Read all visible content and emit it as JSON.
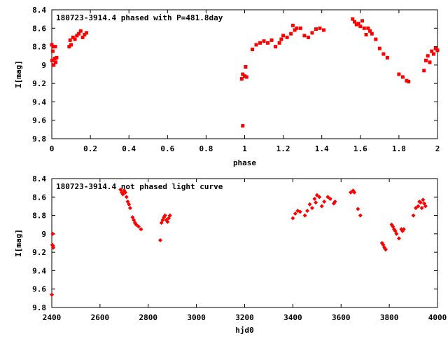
{
  "chart_data": [
    {
      "type": "scatter",
      "title": "180723-3914.4 phased with P=481.8day",
      "xlabel": "phase",
      "ylabel": "I[mag]",
      "xlim": [
        0,
        2
      ],
      "ylim": [
        8.4,
        9.8
      ],
      "y_inverted": true,
      "grid": false,
      "marker_color": "#ff0000",
      "marker": "square",
      "x_ticks": [
        "0",
        "0.2",
        "0.4",
        "0.6",
        "0.8",
        "1",
        "1.2",
        "1.4",
        "1.6",
        "1.8",
        "2"
      ],
      "y_ticks": [
        "8.4",
        "8.6",
        "8.8",
        "9",
        "9.2",
        "9.4",
        "9.6",
        "9.8"
      ],
      "points": [
        [
          0.0,
          8.78
        ],
        [
          0.01,
          8.8
        ],
        [
          0.005,
          8.85
        ],
        [
          0.002,
          8.95
        ],
        [
          0.015,
          8.93
        ],
        [
          0.02,
          8.97
        ],
        [
          0.01,
          9.0
        ],
        [
          0.025,
          8.92
        ],
        [
          0.018,
          8.8
        ],
        [
          0.09,
          8.8
        ],
        [
          0.1,
          8.78
        ],
        [
          0.095,
          8.73
        ],
        [
          0.11,
          8.7
        ],
        [
          0.12,
          8.72
        ],
        [
          0.13,
          8.68
        ],
        [
          0.14,
          8.66
        ],
        [
          0.15,
          8.63
        ],
        [
          0.16,
          8.7
        ],
        [
          0.17,
          8.67
        ],
        [
          0.18,
          8.65
        ],
        [
          0.99,
          9.66
        ],
        [
          0.985,
          9.15
        ],
        [
          0.99,
          9.1
        ],
        [
          1.0,
          9.12
        ],
        [
          1.005,
          9.02
        ],
        [
          1.01,
          9.13
        ],
        [
          1.04,
          8.83
        ],
        [
          1.06,
          8.78
        ],
        [
          1.08,
          8.76
        ],
        [
          1.1,
          8.74
        ],
        [
          1.12,
          8.76
        ],
        [
          1.14,
          8.73
        ],
        [
          1.16,
          8.8
        ],
        [
          1.18,
          8.76
        ],
        [
          1.19,
          8.72
        ],
        [
          1.2,
          8.68
        ],
        [
          1.22,
          8.7
        ],
        [
          1.24,
          8.66
        ],
        [
          1.25,
          8.57
        ],
        [
          1.26,
          8.62
        ],
        [
          1.27,
          8.6
        ],
        [
          1.29,
          8.6
        ],
        [
          1.31,
          8.68
        ],
        [
          1.33,
          8.7
        ],
        [
          1.35,
          8.65
        ],
        [
          1.37,
          8.61
        ],
        [
          1.39,
          8.6
        ],
        [
          1.41,
          8.62
        ],
        [
          1.56,
          8.5
        ],
        [
          1.57,
          8.53
        ],
        [
          1.58,
          8.56
        ],
        [
          1.59,
          8.55
        ],
        [
          1.6,
          8.58
        ],
        [
          1.61,
          8.52
        ],
        [
          1.62,
          8.6
        ],
        [
          1.63,
          8.67
        ],
        [
          1.64,
          8.6
        ],
        [
          1.65,
          8.63
        ],
        [
          1.66,
          8.66
        ],
        [
          1.68,
          8.72
        ],
        [
          1.7,
          8.82
        ],
        [
          1.72,
          8.88
        ],
        [
          1.74,
          8.92
        ],
        [
          1.8,
          9.1
        ],
        [
          1.82,
          9.13
        ],
        [
          1.84,
          9.17
        ],
        [
          1.85,
          9.18
        ],
        [
          1.93,
          9.06
        ],
        [
          1.94,
          8.95
        ],
        [
          1.95,
          8.9
        ],
        [
          1.96,
          8.97
        ],
        [
          1.97,
          8.85
        ],
        [
          1.98,
          8.88
        ],
        [
          1.99,
          8.82
        ],
        [
          2.0,
          8.84
        ]
      ]
    },
    {
      "type": "scatter",
      "title": "180723-3914.4 not phased light curve",
      "xlabel": "hjd0",
      "ylabel": "I[mag]",
      "xlim": [
        2400,
        4000
      ],
      "ylim": [
        8.4,
        9.8
      ],
      "y_inverted": true,
      "grid": false,
      "marker_color": "#ff0000",
      "marker": "diamond",
      "x_ticks": [
        "2400",
        "2600",
        "2800",
        "3000",
        "3200",
        "3400",
        "3600",
        "3800",
        "4000"
      ],
      "y_ticks": [
        "8.4",
        "8.6",
        "8.8",
        "9",
        "9.2",
        "9.4",
        "9.6",
        "9.8"
      ],
      "points": [
        [
          2400,
          9.66
        ],
        [
          2402,
          9.12
        ],
        [
          2404,
          9.0
        ],
        [
          2406,
          9.15
        ],
        [
          2405,
          9.13
        ],
        [
          2685,
          8.52
        ],
        [
          2690,
          8.55
        ],
        [
          2695,
          8.57
        ],
        [
          2700,
          8.53
        ],
        [
          2705,
          8.55
        ],
        [
          2710,
          8.6
        ],
        [
          2715,
          8.65
        ],
        [
          2720,
          8.68
        ],
        [
          2725,
          8.72
        ],
        [
          2735,
          8.82
        ],
        [
          2740,
          8.85
        ],
        [
          2745,
          8.88
        ],
        [
          2750,
          8.9
        ],
        [
          2760,
          8.92
        ],
        [
          2770,
          8.95
        ],
        [
          2850,
          9.07
        ],
        [
          2855,
          8.88
        ],
        [
          2860,
          8.85
        ],
        [
          2865,
          8.82
        ],
        [
          2870,
          8.8
        ],
        [
          2875,
          8.85
        ],
        [
          2880,
          8.87
        ],
        [
          2885,
          8.83
        ],
        [
          2890,
          8.8
        ],
        [
          3400,
          8.83
        ],
        [
          3410,
          8.78
        ],
        [
          3420,
          8.75
        ],
        [
          3430,
          8.76
        ],
        [
          3450,
          8.8
        ],
        [
          3460,
          8.75
        ],
        [
          3470,
          8.68
        ],
        [
          3480,
          8.72
        ],
        [
          3490,
          8.62
        ],
        [
          3495,
          8.66
        ],
        [
          3500,
          8.58
        ],
        [
          3510,
          8.6
        ],
        [
          3520,
          8.7
        ],
        [
          3530,
          8.65
        ],
        [
          3545,
          8.6
        ],
        [
          3555,
          8.62
        ],
        [
          3570,
          8.67
        ],
        [
          3575,
          8.65
        ],
        [
          3640,
          8.55
        ],
        [
          3650,
          8.53
        ],
        [
          3655,
          8.55
        ],
        [
          3670,
          8.73
        ],
        [
          3680,
          8.8
        ],
        [
          3770,
          9.1
        ],
        [
          3775,
          9.12
        ],
        [
          3780,
          9.15
        ],
        [
          3785,
          9.17
        ],
        [
          3810,
          8.9
        ],
        [
          3815,
          8.92
        ],
        [
          3820,
          8.95
        ],
        [
          3825,
          8.97
        ],
        [
          3830,
          9.0
        ],
        [
          3840,
          9.05
        ],
        [
          3850,
          8.95
        ],
        [
          3855,
          8.97
        ],
        [
          3860,
          8.95
        ],
        [
          3900,
          8.8
        ],
        [
          3910,
          8.72
        ],
        [
          3920,
          8.7
        ],
        [
          3925,
          8.65
        ],
        [
          3930,
          8.66
        ],
        [
          3935,
          8.72
        ],
        [
          3940,
          8.63
        ],
        [
          3945,
          8.67
        ],
        [
          3950,
          8.7
        ]
      ]
    }
  ]
}
